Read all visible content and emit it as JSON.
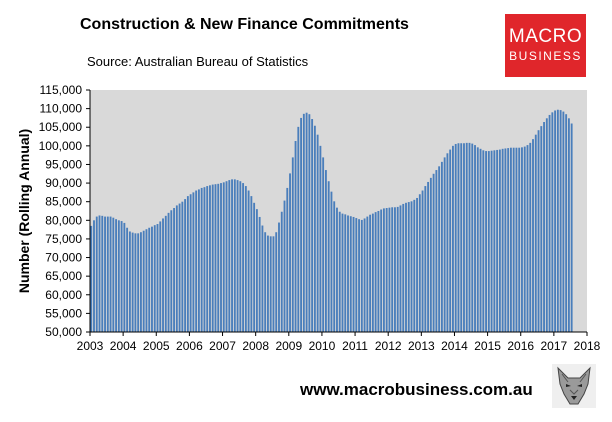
{
  "header": {
    "title": "Construction & New Finance Commitments",
    "subtitle": "Source: Australian  Bureau of Statistics"
  },
  "logo": {
    "line1": "MACRO",
    "line2": "BUSINESS"
  },
  "footer": {
    "url": "www.macrobusiness.com.au",
    "logo_icon": "wolf-head-icon"
  },
  "chart_data": {
    "type": "bar",
    "title": "Construction & New Finance Commitments",
    "ylabel": "Number (Rolling Annual)",
    "xlabel": "",
    "ylim": [
      50000,
      115000
    ],
    "yticks": [
      50000,
      55000,
      60000,
      65000,
      70000,
      75000,
      80000,
      85000,
      90000,
      95000,
      100000,
      105000,
      110000,
      115000
    ],
    "ytick_labels": [
      "50,000",
      "55,000",
      "60,000",
      "65,000",
      "70,000",
      "75,000",
      "80,000",
      "85,000",
      "90,000",
      "95,000",
      "100,000",
      "105,000",
      "110,000",
      "115,000"
    ],
    "xtick_labels": [
      "2003",
      "2004",
      "2005",
      "2006",
      "2007",
      "2008",
      "2009",
      "2010",
      "2011",
      "2012",
      "2013",
      "2014",
      "2015",
      "2016",
      "2017",
      "2018"
    ],
    "xlim_years": [
      2003,
      2018
    ],
    "bar_color": "#4a7ebb",
    "plot_background": "#d9d9d9",
    "grid": false,
    "series": [
      {
        "start": "2003-01",
        "frequency": "monthly",
        "values": [
          78500,
          80000,
          81000,
          81300,
          81200,
          81000,
          81000,
          81000,
          80700,
          80300,
          80000,
          79800,
          79300,
          78000,
          77000,
          76700,
          76500,
          76500,
          76800,
          77200,
          77600,
          78000,
          78300,
          78700,
          79000,
          79700,
          80500,
          81200,
          82000,
          82700,
          83300,
          84000,
          84500,
          85000,
          85700,
          86500,
          87000,
          87500,
          88000,
          88300,
          88700,
          88900,
          89200,
          89400,
          89600,
          89700,
          89800,
          90000,
          90200,
          90500,
          90800,
          91000,
          91000,
          90800,
          90500,
          90000,
          89200,
          88000,
          86500,
          84700,
          83000,
          80900,
          78600,
          76800,
          75900,
          75700,
          75700,
          76800,
          79400,
          82300,
          85300,
          88700,
          92600,
          96900,
          101300,
          105100,
          107500,
          108600,
          108900,
          108500,
          107200,
          105400,
          103000,
          100000,
          96900,
          93500,
          90500,
          87700,
          85100,
          83400,
          82300,
          81800,
          81600,
          81300,
          81100,
          80900,
          80600,
          80300,
          80100,
          80500,
          81000,
          81500,
          81800,
          82200,
          82500,
          82900,
          83200,
          83300,
          83400,
          83500,
          83500,
          83600,
          84000,
          84400,
          84700,
          84900,
          85100,
          85500,
          86000,
          87000,
          88000,
          89200,
          90300,
          91400,
          92500,
          93500,
          94500,
          95700,
          96900,
          98000,
          99000,
          100000,
          100500,
          100700,
          100700,
          100700,
          100800,
          100800,
          100600,
          100200,
          99600,
          99200,
          98800,
          98600,
          98600,
          98700,
          98800,
          98900,
          99000,
          99200,
          99300,
          99400,
          99500,
          99500,
          99500,
          99500,
          99600,
          99800,
          100200,
          100800,
          101800,
          103000,
          104200,
          105300,
          106400,
          107400,
          108300,
          109000,
          109500,
          109700,
          109600,
          109200,
          108500,
          107400,
          106000
        ]
      }
    ]
  }
}
